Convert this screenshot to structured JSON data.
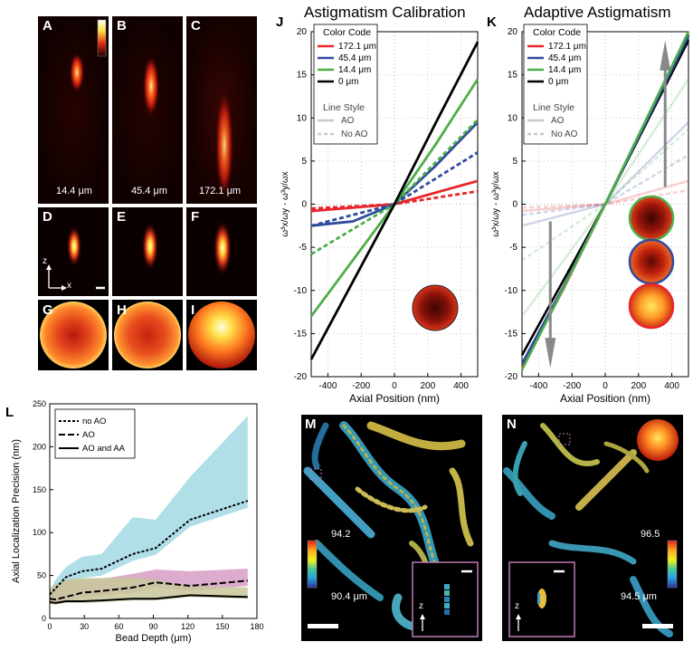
{
  "panel_labels": {
    "A": "A",
    "B": "B",
    "C": "C",
    "D": "D",
    "E": "E",
    "F": "F",
    "G": "G",
    "H": "H",
    "I": "I",
    "J": "J",
    "K": "K",
    "L": "L",
    "M": "M",
    "N": "N"
  },
  "psf_depths": [
    "14.4 μm",
    "45.4 μm",
    "172.1 μm"
  ],
  "axis_glyphs": {
    "z": "z",
    "x": "x"
  },
  "colors": {
    "red": "#e8262b",
    "blue": "#2f4b9e",
    "green": "#4caf4a",
    "black": "#000000",
    "light_gray": "#c8c8c8",
    "fill_cyan": "#a9dce6",
    "fill_pink": "#d9a2c9",
    "fill_olive": "#c8c79a",
    "magenta_box": "#c07ab8"
  },
  "chart_data": [
    {
      "panel": "J",
      "type": "line",
      "title": "Astigmatism Calibration",
      "xlabel": "Axial Position (nm)",
      "ylabel": "ω³x/ωy - ω³y/ωx",
      "xlim": [
        -500,
        500
      ],
      "ylim": [
        -20,
        20
      ],
      "xticks": [
        "-400",
        "-200",
        "0",
        "200",
        "400"
      ],
      "yticks": [
        "-20",
        "-15",
        "-10",
        "-5",
        "0",
        "5",
        "10",
        "15",
        "20"
      ],
      "legend": {
        "color_heading": "Color Code",
        "style_heading": "Line Style",
        "items": [
          "172.1 μm",
          "45.4 μm",
          "14.4 μm",
          "0 μm"
        ],
        "styles": [
          "AO",
          "No AO"
        ]
      },
      "series": [
        {
          "name": "172.1 μm",
          "style": "AO",
          "color": "#e8262b",
          "x": [
            -500,
            0,
            500
          ],
          "y": [
            -0.8,
            0,
            2.7
          ]
        },
        {
          "name": "172.1 μm",
          "style": "No AO",
          "color": "#e8262b",
          "x": [
            -500,
            0,
            500
          ],
          "y": [
            -0.5,
            0,
            1.5
          ]
        },
        {
          "name": "45.4 μm",
          "style": "AO",
          "color": "#2f4b9e",
          "x": [
            -500,
            -250,
            0,
            250,
            500
          ],
          "y": [
            -2.5,
            -2.0,
            0,
            4.5,
            9.5
          ]
        },
        {
          "name": "45.4 μm",
          "style": "No AO",
          "color": "#2f4b9e",
          "x": [
            -500,
            0,
            500
          ],
          "y": [
            -2.5,
            0,
            6.0
          ]
        },
        {
          "name": "14.4 μm",
          "style": "AO",
          "color": "#4caf4a",
          "x": [
            -500,
            -250,
            0,
            250,
            500
          ],
          "y": [
            -13.0,
            -6.5,
            0,
            7.0,
            14.5
          ]
        },
        {
          "name": "14.4 μm",
          "style": "No AO",
          "color": "#4caf4a",
          "x": [
            -500,
            0,
            500
          ],
          "y": [
            -5.8,
            0,
            9.8
          ]
        },
        {
          "name": "0 μm",
          "style": "AO",
          "color": "#000000",
          "x": [
            -500,
            -250,
            0,
            250,
            500
          ],
          "y": [
            -18.0,
            -9.0,
            0,
            9.5,
            18.8
          ]
        }
      ]
    },
    {
      "panel": "K",
      "type": "line",
      "title": "Adaptive Astigmatism",
      "xlabel": "Axial Position (nm)",
      "ylabel": "ω³x/ωy - ω³y/ωx",
      "xlim": [
        -500,
        500
      ],
      "ylim": [
        -20,
        20
      ],
      "xticks": [
        "-400",
        "-200",
        "0",
        "200",
        "400"
      ],
      "yticks": [
        "-20",
        "-15",
        "-10",
        "-5",
        "0",
        "5",
        "10",
        "15",
        "20"
      ],
      "legend": {
        "color_heading": "Color Code",
        "style_heading": "Line Style",
        "items": [
          "172.1 μm",
          "45.4 μm",
          "14.4 μm",
          "0 μm"
        ],
        "styles": [
          "AO",
          "No AO"
        ]
      },
      "series": [
        {
          "name": "0 μm",
          "style": "AO",
          "color": "#000000",
          "x": [
            -500,
            -250,
            0,
            250,
            500
          ],
          "y": [
            -17.5,
            -8.8,
            0,
            9.5,
            19.0
          ]
        },
        {
          "name": "172.1 μm",
          "style": "AA",
          "color": "#e8262b",
          "x": [
            -500,
            -250,
            0,
            250,
            500
          ],
          "y": [
            -19.0,
            -9.8,
            0,
            9.8,
            20.0
          ]
        },
        {
          "name": "45.4 μm",
          "style": "AA",
          "color": "#2f4b9e",
          "x": [
            -500,
            -250,
            0,
            250,
            500
          ],
          "y": [
            -18.5,
            -9.5,
            0,
            9.7,
            19.5
          ]
        },
        {
          "name": "14.4 μm",
          "style": "AA",
          "color": "#4caf4a",
          "x": [
            -500,
            -250,
            0,
            250,
            500
          ],
          "y": [
            -19.2,
            -9.7,
            0,
            10.0,
            20.0
          ]
        }
      ]
    },
    {
      "panel": "L",
      "type": "line",
      "title": "",
      "xlabel": "Bead Depth (μm)",
      "ylabel": "Axial Localization Precision (nm)",
      "xlim": [
        0,
        180
      ],
      "ylim": [
        0,
        250
      ],
      "xticks": [
        "0",
        "30",
        "60",
        "90",
        "120",
        "150",
        "180"
      ],
      "yticks": [
        "0",
        "50",
        "100",
        "150",
        "200",
        "250"
      ],
      "legend": {
        "items": [
          "no AO",
          "AO",
          "AO and AA"
        ],
        "placement": "top-left"
      },
      "series": [
        {
          "name": "no AO",
          "x": [
            0,
            5,
            14,
            28,
            45,
            72,
            92,
            122,
            172
          ],
          "y": [
            28,
            35,
            48,
            55,
            58,
            75,
            82,
            115,
            137
          ]
        },
        {
          "name": "AO",
          "x": [
            0,
            5,
            14,
            28,
            45,
            72,
            92,
            122,
            172
          ],
          "y": [
            23,
            22,
            25,
            30,
            32,
            36,
            42,
            38,
            44
          ]
        },
        {
          "name": "AO and AA",
          "x": [
            0,
            5,
            14,
            28,
            45,
            72,
            92,
            122,
            172
          ],
          "y": [
            19,
            18,
            20,
            20,
            21,
            23,
            23,
            27,
            25
          ]
        }
      ]
    }
  ],
  "colorbars": {
    "M": {
      "top": "94.2",
      "bottom": "90.4 μm"
    },
    "N": {
      "top": "96.5",
      "bottom": "94.5 μm"
    }
  }
}
